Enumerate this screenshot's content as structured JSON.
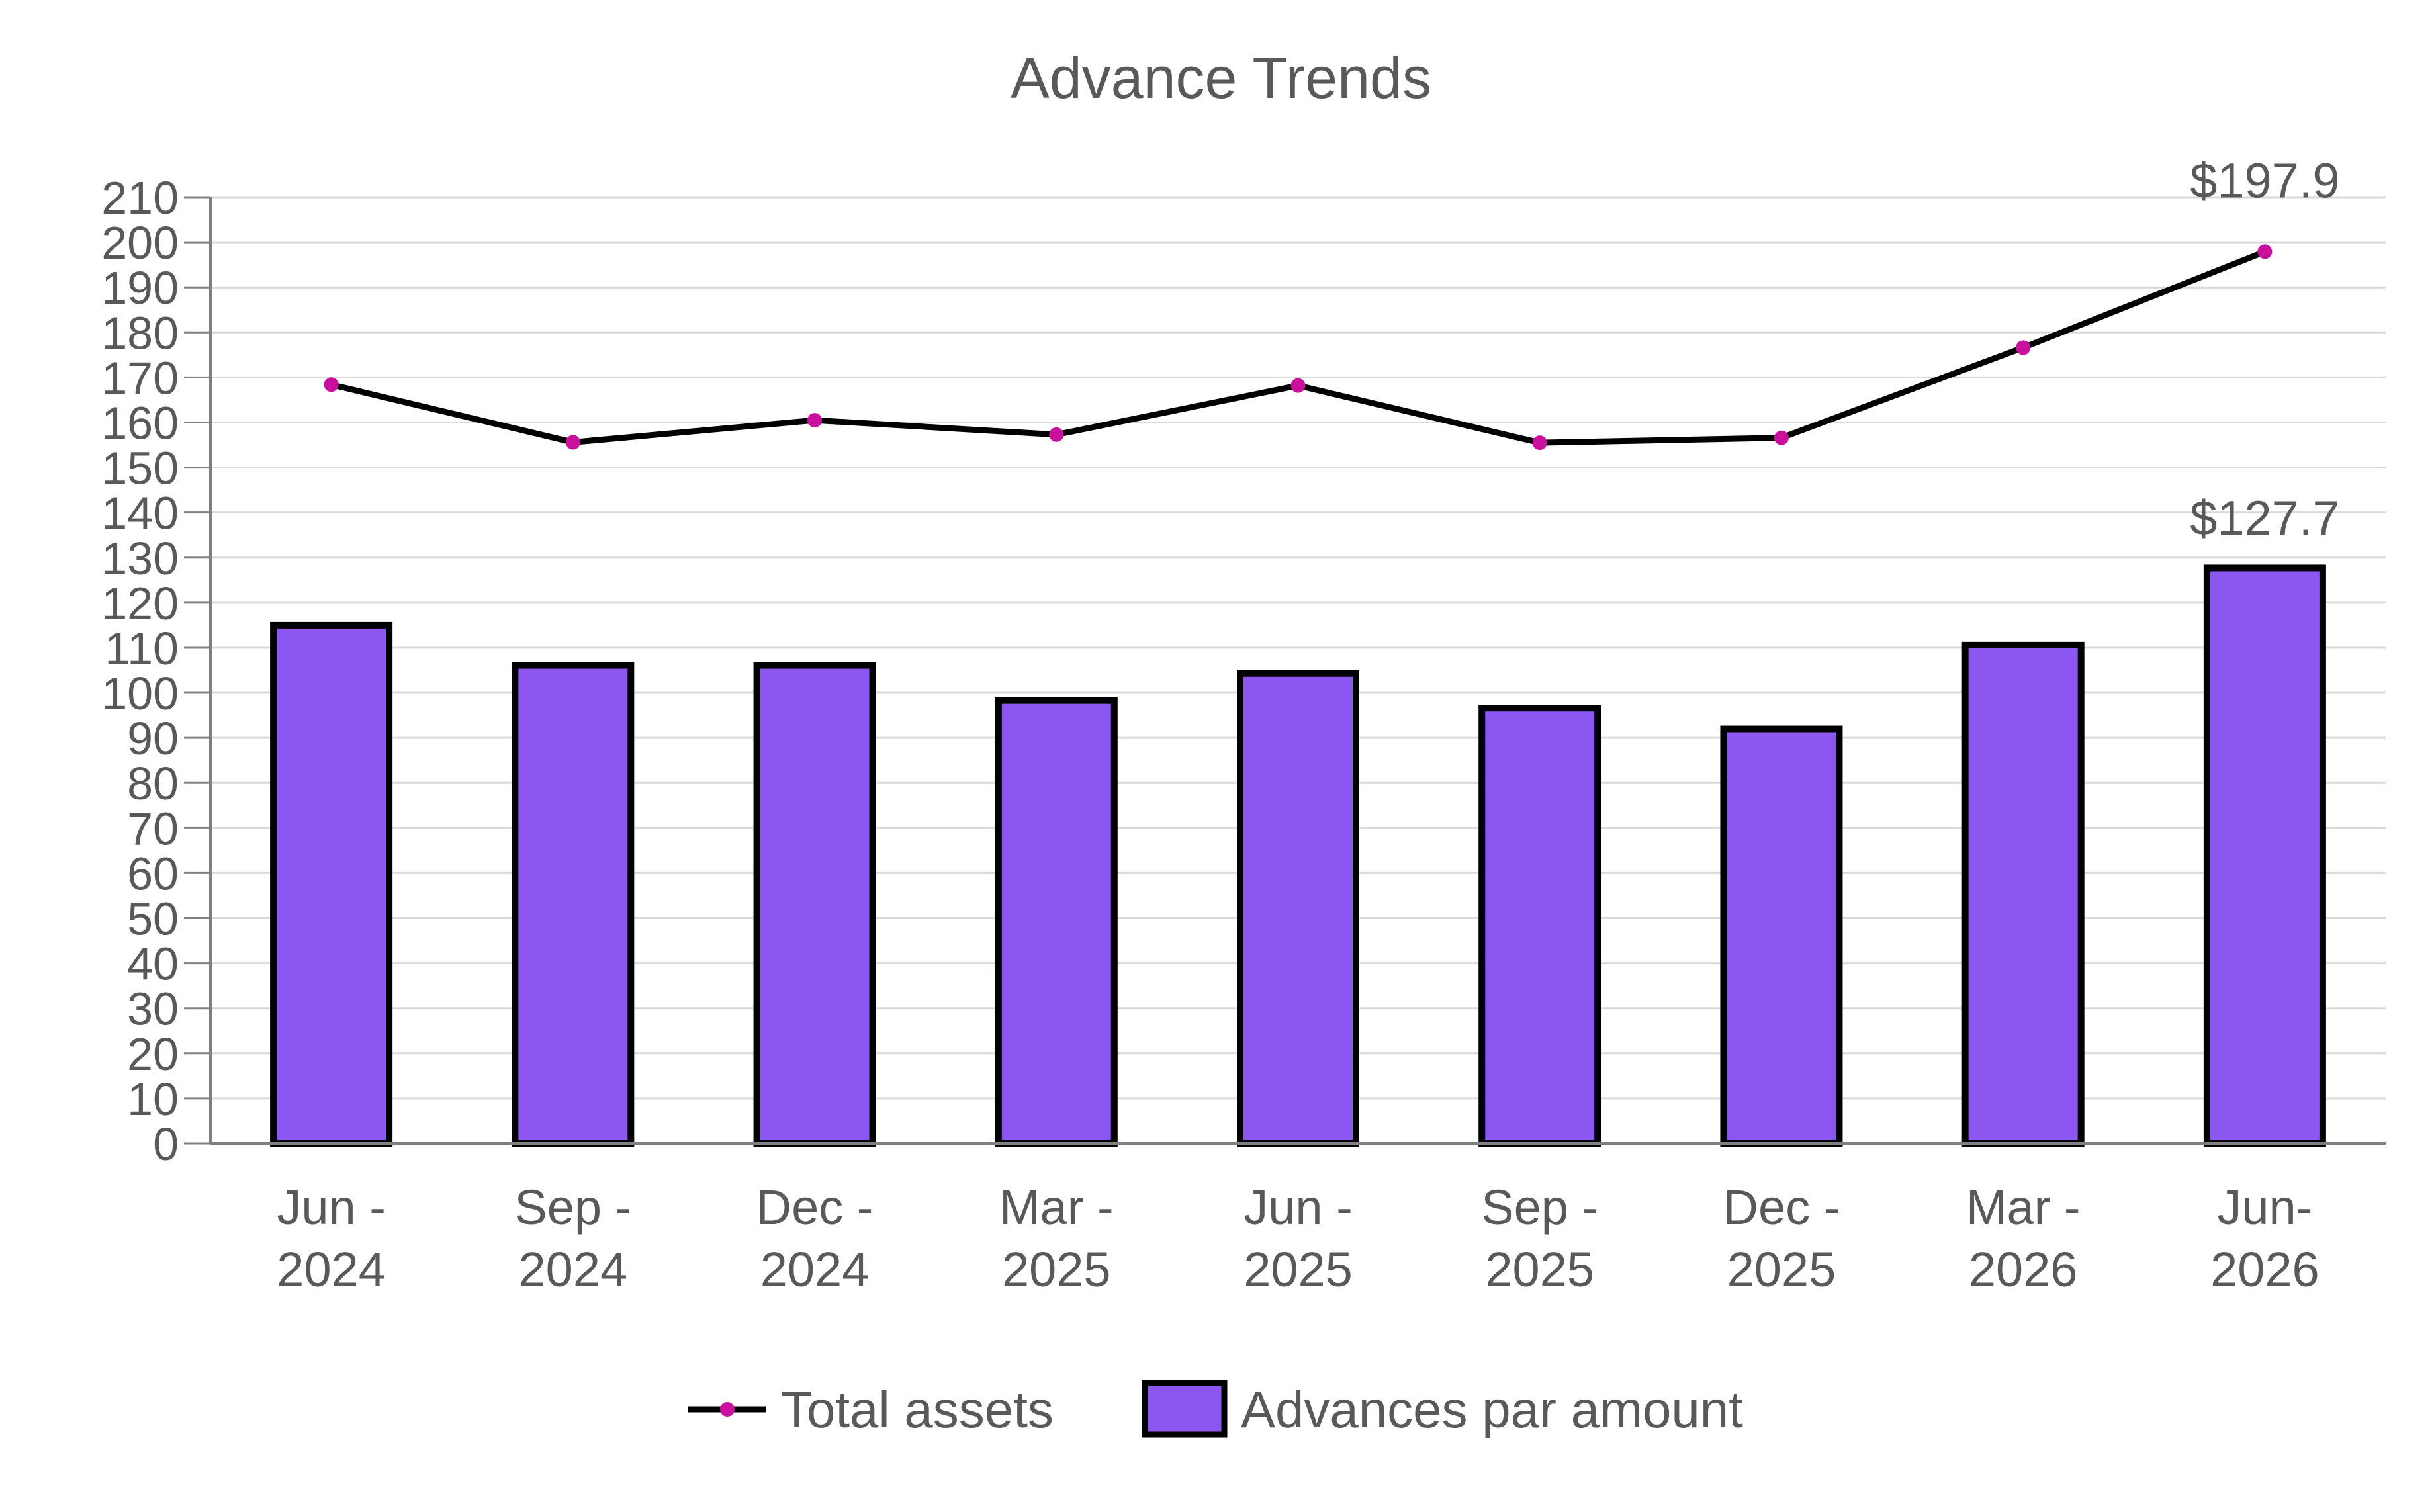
{
  "chart_data": {
    "type": "bar",
    "title": "Advance Trends",
    "xlabel": "",
    "ylabel": "",
    "ylim": [
      0,
      210
    ],
    "yticks": [
      0,
      10,
      20,
      30,
      40,
      50,
      60,
      70,
      80,
      90,
      100,
      110,
      120,
      130,
      140,
      150,
      160,
      170,
      180,
      190,
      200,
      210
    ],
    "grid": true,
    "legend_position": "bottom",
    "categories": [
      [
        "Jun -",
        "2024"
      ],
      [
        "Sep -",
        "2024"
      ],
      [
        "Dec -",
        "2024"
      ],
      [
        "Mar -",
        "2025"
      ],
      [
        "Jun -",
        "2025"
      ],
      [
        "Sep -",
        "2025"
      ],
      [
        "Dec -",
        "2025"
      ],
      [
        "Mar -",
        "2026"
      ],
      [
        "Jun-",
        "2026"
      ]
    ],
    "series": [
      {
        "name": "Advances par amount",
        "type": "bar",
        "color": "#8B57F0",
        "values": [
          115.0,
          106.1,
          106.1,
          98.3,
          104.3,
          96.6,
          92.0,
          110.6,
          127.7
        ],
        "labels": {
          "8": "$127.7"
        }
      },
      {
        "name": "Total assets",
        "type": "line",
        "color": "#000000",
        "marker_color": "#C8109C",
        "values": [
          168.4,
          155.6,
          160.5,
          157.3,
          168.2,
          155.5,
          156.6,
          176.6,
          197.9
        ],
        "labels": {
          "8": "$197.9"
        }
      }
    ],
    "legend": [
      "Total assets",
      "Advances par amount"
    ]
  }
}
